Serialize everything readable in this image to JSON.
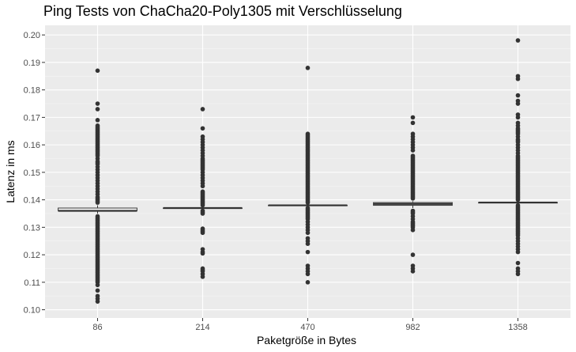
{
  "chart_data": {
    "type": "boxplot",
    "title": "Ping Tests von ChaCha20-Poly1305 mit Verschlüsselung",
    "xlabel": "Paketgröße in Bytes",
    "ylabel": "Latenz in ms",
    "categories": [
      "86",
      "214",
      "470",
      "982",
      "1358"
    ],
    "ylim": [
      0.097,
      0.2035
    ],
    "yticks": [
      0.1,
      0.11,
      0.12,
      0.13,
      0.14,
      0.15,
      0.16,
      0.17,
      0.18,
      0.19,
      0.2
    ],
    "ytick_labels": [
      "0.10",
      "0.11",
      "0.12",
      "0.13",
      "0.14",
      "0.15",
      "0.16",
      "0.17",
      "0.18",
      "0.19",
      "0.20"
    ],
    "grid": true,
    "boxes": [
      {
        "category": "86",
        "q1": 0.136,
        "median": 0.136,
        "q3": 0.137,
        "whisker_low": 0.135,
        "whisker_high": 0.138,
        "outliers": [
          0.187,
          0.175,
          0.173,
          0.169,
          0.167,
          0.1665,
          0.166,
          0.1655,
          0.165,
          0.1645,
          0.164,
          0.1635,
          0.163,
          0.1625,
          0.162,
          0.1615,
          0.161,
          0.1605,
          0.16,
          0.1595,
          0.159,
          0.1585,
          0.158,
          0.1575,
          0.157,
          0.1565,
          0.156,
          0.155,
          0.154,
          0.1535,
          0.153,
          0.152,
          0.151,
          0.15,
          0.149,
          0.148,
          0.147,
          0.146,
          0.145,
          0.144,
          0.143,
          0.142,
          0.141,
          0.1405,
          0.14,
          0.1395,
          0.139,
          0.134,
          0.1335,
          0.133,
          0.1325,
          0.132,
          0.1315,
          0.131,
          0.1305,
          0.13,
          0.1295,
          0.129,
          0.1285,
          0.128,
          0.1275,
          0.127,
          0.1265,
          0.126,
          0.1255,
          0.125,
          0.1245,
          0.124,
          0.1235,
          0.123,
          0.1225,
          0.122,
          0.1215,
          0.121,
          0.1205,
          0.12,
          0.1195,
          0.119,
          0.1185,
          0.118,
          0.1175,
          0.117,
          0.1165,
          0.116,
          0.1155,
          0.115,
          0.1145,
          0.114,
          0.1135,
          0.113,
          0.1125,
          0.112,
          0.1115,
          0.111,
          0.1105,
          0.11,
          0.109,
          0.107,
          0.105,
          0.104,
          0.103
        ]
      },
      {
        "category": "214",
        "q1": 0.137,
        "median": 0.137,
        "q3": 0.137,
        "whisker_low": 0.1365,
        "whisker_high": 0.1375,
        "outliers": [
          0.173,
          0.166,
          0.163,
          0.162,
          0.161,
          0.16,
          0.159,
          0.158,
          0.157,
          0.156,
          0.155,
          0.1545,
          0.154,
          0.1535,
          0.153,
          0.1525,
          0.152,
          0.1515,
          0.151,
          0.15,
          0.149,
          0.148,
          0.147,
          0.146,
          0.145,
          0.143,
          0.1425,
          0.142,
          0.1415,
          0.141,
          0.1405,
          0.14,
          0.1395,
          0.139,
          0.1385,
          0.138,
          0.136,
          0.1355,
          0.135,
          0.1295,
          0.129,
          0.1285,
          0.128,
          0.122,
          0.121,
          0.1205,
          0.115,
          0.1145,
          0.114,
          0.113,
          0.112
        ]
      },
      {
        "category": "470",
        "q1": 0.138,
        "median": 0.138,
        "q3": 0.138,
        "whisker_low": 0.1375,
        "whisker_high": 0.1385,
        "outliers": [
          0.188,
          0.164,
          0.1635,
          0.163,
          0.1625,
          0.162,
          0.1615,
          0.161,
          0.1605,
          0.16,
          0.1595,
          0.159,
          0.1585,
          0.158,
          0.1575,
          0.157,
          0.1565,
          0.156,
          0.1555,
          0.155,
          0.1545,
          0.154,
          0.1535,
          0.153,
          0.1525,
          0.152,
          0.1515,
          0.151,
          0.1505,
          0.15,
          0.1495,
          0.149,
          0.1485,
          0.148,
          0.1475,
          0.147,
          0.1465,
          0.146,
          0.1455,
          0.145,
          0.1445,
          0.144,
          0.1435,
          0.143,
          0.1425,
          0.142,
          0.1415,
          0.141,
          0.1405,
          0.14,
          0.1395,
          0.139,
          0.137,
          0.1365,
          0.136,
          0.1355,
          0.135,
          0.1345,
          0.134,
          0.1335,
          0.133,
          0.132,
          0.131,
          0.13,
          0.129,
          0.128,
          0.126,
          0.125,
          0.124,
          0.121,
          0.116,
          0.115,
          0.114,
          0.113,
          0.11
        ]
      },
      {
        "category": "982",
        "q1": 0.138,
        "median": 0.1385,
        "q3": 0.139,
        "whisker_low": 0.137,
        "whisker_high": 0.1395,
        "outliers": [
          0.17,
          0.168,
          0.164,
          0.163,
          0.162,
          0.161,
          0.16,
          0.159,
          0.158,
          0.156,
          0.1555,
          0.155,
          0.1545,
          0.154,
          0.1535,
          0.153,
          0.1525,
          0.152,
          0.1515,
          0.151,
          0.1505,
          0.15,
          0.1495,
          0.149,
          0.1485,
          0.148,
          0.1475,
          0.147,
          0.1465,
          0.146,
          0.1455,
          0.145,
          0.1445,
          0.144,
          0.1435,
          0.143,
          0.1425,
          0.142,
          0.1415,
          0.141,
          0.1405,
          0.136,
          0.1355,
          0.135,
          0.134,
          0.133,
          0.132,
          0.1315,
          0.131,
          0.1305,
          0.13,
          0.129,
          0.12,
          0.116,
          0.115,
          0.114
        ]
      },
      {
        "category": "1358",
        "q1": 0.139,
        "median": 0.139,
        "q3": 0.139,
        "whisker_low": 0.1385,
        "whisker_high": 0.1395,
        "outliers": [
          0.198,
          0.185,
          0.184,
          0.178,
          0.176,
          0.175,
          0.171,
          0.17,
          0.168,
          0.167,
          0.166,
          0.1655,
          0.165,
          0.1645,
          0.164,
          0.163,
          0.162,
          0.1615,
          0.161,
          0.16,
          0.159,
          0.158,
          0.157,
          0.156,
          0.1555,
          0.155,
          0.1545,
          0.154,
          0.1535,
          0.153,
          0.1525,
          0.152,
          0.1515,
          0.151,
          0.1505,
          0.15,
          0.1495,
          0.149,
          0.1485,
          0.148,
          0.1475,
          0.147,
          0.1465,
          0.146,
          0.1455,
          0.145,
          0.1445,
          0.144,
          0.1435,
          0.143,
          0.1425,
          0.142,
          0.1415,
          0.141,
          0.1405,
          0.14,
          0.138,
          0.1375,
          0.137,
          0.1365,
          0.136,
          0.1355,
          0.135,
          0.1345,
          0.134,
          0.1335,
          0.133,
          0.1325,
          0.132,
          0.1315,
          0.131,
          0.1305,
          0.13,
          0.1295,
          0.129,
          0.1285,
          0.128,
          0.1275,
          0.127,
          0.126,
          0.125,
          0.124,
          0.123,
          0.122,
          0.121,
          0.117,
          0.115,
          0.114,
          0.113
        ]
      }
    ]
  },
  "colors": {
    "panel": "#ebebeb",
    "grid_major": "#ffffff",
    "grid_minor": "#f5f5f5",
    "point": "#333333",
    "box_line": "#333333",
    "box_fill": "#ffffff",
    "tick_label": "#4d4d4d",
    "text": "#000000"
  }
}
